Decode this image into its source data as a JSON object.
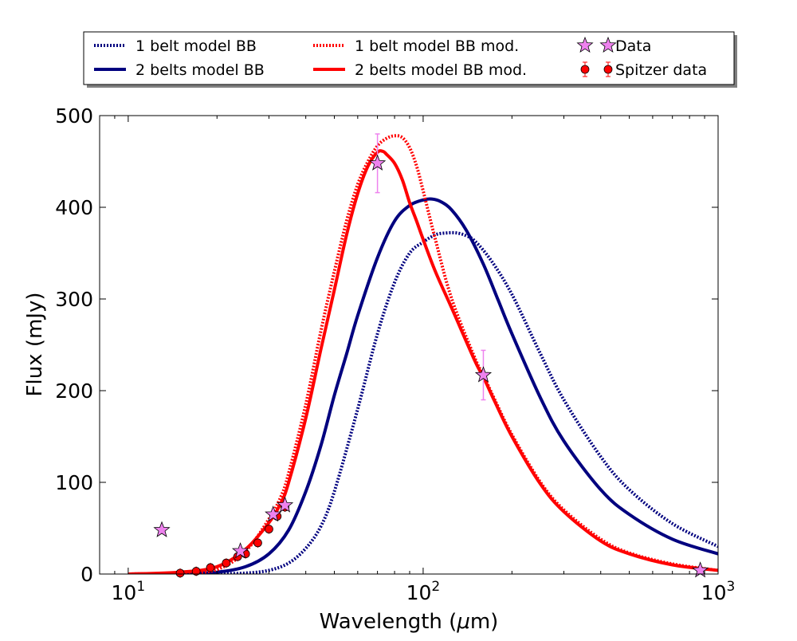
{
  "chart_data": {
    "type": "line",
    "xlabel_main": "Wavelength (",
    "xlabel_mu": "μ",
    "xlabel_unit": "m)",
    "ylabel": "Flux (mJy)",
    "xscale": "log",
    "xlim": [
      8,
      1000
    ],
    "ylim": [
      0,
      500
    ],
    "grid": false,
    "legend_position": "top (above plot, outside)",
    "x_ticks": [
      {
        "value": 10,
        "base": "10",
        "exp": "1"
      },
      {
        "value": 100,
        "base": "10",
        "exp": "2"
      },
      {
        "value": 1000,
        "base": "10",
        "exp": "3"
      }
    ],
    "y_ticks": [
      {
        "value": 0,
        "label": "0"
      },
      {
        "value": 100,
        "label": "100"
      },
      {
        "value": 200,
        "label": "200"
      },
      {
        "value": 300,
        "label": "300"
      },
      {
        "value": 400,
        "label": "400"
      },
      {
        "value": 500,
        "label": "500"
      }
    ],
    "series": [
      {
        "name": "1 belt model BB",
        "color": "#00007f",
        "style": "dotted",
        "x": [
          10,
          15,
          20,
          25,
          30,
          35,
          40,
          45,
          50,
          60,
          70,
          80,
          90,
          100,
          110,
          120,
          130,
          140,
          150,
          170,
          200,
          250,
          300,
          400,
          500,
          700,
          1000
        ],
        "y": [
          0,
          0,
          0.3,
          1,
          4,
          12,
          28,
          52,
          90,
          180,
          262,
          318,
          350,
          362,
          370,
          372,
          372,
          369,
          363,
          342,
          305,
          240,
          190,
          128,
          92,
          55,
          30
        ]
      },
      {
        "name": "2 belts model BB",
        "color": "#00007f",
        "style": "solid",
        "x": [
          10,
          15,
          20,
          25,
          30,
          35,
          40,
          45,
          50,
          55,
          60,
          70,
          80,
          90,
          100,
          107,
          115,
          125,
          140,
          160,
          180,
          200,
          250,
          300,
          400,
          500,
          700,
          1000
        ],
        "y": [
          0,
          0.5,
          2,
          8,
          22,
          48,
          90,
          140,
          195,
          240,
          282,
          345,
          385,
          402,
          408,
          409,
          406,
          397,
          375,
          338,
          298,
          262,
          192,
          145,
          92,
          65,
          38,
          22
        ]
      },
      {
        "name": "1 belt model BB mod.",
        "color": "#ff0000",
        "style": "dotted",
        "x": [
          10,
          15,
          20,
          25,
          30,
          33,
          35,
          40,
          45,
          50,
          55,
          60,
          65,
          70,
          75,
          80,
          85,
          90,
          95,
          100,
          110,
          125,
          150,
          160,
          175,
          200,
          250,
          300,
          400,
          500,
          700,
          1000
        ],
        "y": [
          0,
          1,
          5,
          25,
          60,
          85,
          110,
          185,
          265,
          330,
          385,
          425,
          450,
          467,
          475,
          478,
          476,
          465,
          445,
          418,
          365,
          300,
          235,
          217,
          190,
          152,
          100,
          70,
          38,
          23,
          11,
          4
        ]
      },
      {
        "name": "2 belts model BB mod.",
        "color": "#ff0000",
        "style": "solid",
        "x": [
          10,
          15,
          20,
          25,
          30,
          33,
          35,
          40,
          45,
          50,
          55,
          60,
          65,
          70,
          73,
          75,
          80,
          85,
          90,
          95,
          100,
          110,
          125,
          150,
          160,
          175,
          200,
          250,
          300,
          400,
          500,
          700,
          1000
        ],
        "y": [
          0,
          2,
          8,
          27,
          56,
          78,
          100,
          170,
          245,
          310,
          370,
          415,
          445,
          460,
          461,
          458,
          448,
          430,
          405,
          385,
          365,
          330,
          290,
          232,
          215,
          188,
          150,
          98,
          68,
          36,
          22,
          10,
          4
        ]
      }
    ],
    "data_points": {
      "name": "Data",
      "marker": "star",
      "color": "#ee82ee",
      "points": [
        {
          "x": 13,
          "y": 48
        },
        {
          "x": 24,
          "y": 25
        },
        {
          "x": 31,
          "y": 65
        },
        {
          "x": 34,
          "y": 75
        },
        {
          "x": 70,
          "y": 448,
          "err": 32
        },
        {
          "x": 160,
          "y": 217,
          "err": 27
        },
        {
          "x": 870,
          "y": 4
        }
      ]
    },
    "spitzer_points": {
      "name": "Spitzer data",
      "marker": "circle",
      "color": "#ff0000",
      "points": [
        {
          "x": 15,
          "y": 1
        },
        {
          "x": 17,
          "y": 3
        },
        {
          "x": 19,
          "y": 7
        },
        {
          "x": 21.5,
          "y": 12
        },
        {
          "x": 23.5,
          "y": 19
        },
        {
          "x": 25,
          "y": 22
        },
        {
          "x": 27.5,
          "y": 34
        },
        {
          "x": 30,
          "y": 49
        },
        {
          "x": 32,
          "y": 63
        },
        {
          "x": 34,
          "y": 73
        }
      ]
    },
    "legend": [
      {
        "label": "1 belt model BB",
        "kind": "line",
        "color": "#00007f",
        "style": "dotted"
      },
      {
        "label": "2 belts model BB",
        "kind": "line",
        "color": "#00007f",
        "style": "solid"
      },
      {
        "label": "1 belt model BB mod.",
        "kind": "line",
        "color": "#ff0000",
        "style": "dotted"
      },
      {
        "label": "2 belts model BB mod.",
        "kind": "line",
        "color": "#ff0000",
        "style": "solid"
      },
      {
        "label": "Data",
        "kind": "star",
        "color": "#ee82ee"
      },
      {
        "label": "Spitzer data",
        "kind": "errpoint",
        "color": "#ff0000"
      }
    ]
  }
}
